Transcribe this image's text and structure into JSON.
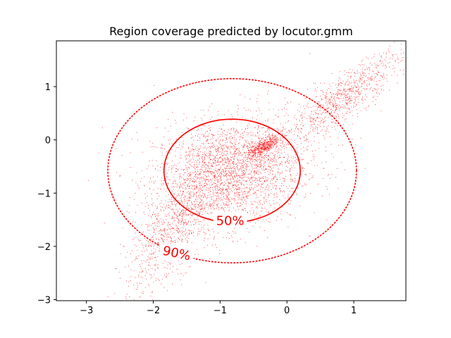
{
  "chart_data": {
    "type": "scatter",
    "title": "Region coverage predicted by locutor.gmm",
    "xlabel": "",
    "ylabel": "",
    "xlim": [
      -3.45,
      1.78
    ],
    "ylim": [
      -3.02,
      1.86
    ],
    "x_ticks": [
      -3,
      -2,
      -1,
      0,
      1
    ],
    "y_ticks": [
      -3,
      -2,
      -1,
      0,
      1
    ],
    "x_tick_labels": [
      "−3",
      "−2",
      "−1",
      "0",
      "1"
    ],
    "y_tick_labels": [
      "−3",
      "−2",
      "−1",
      "0",
      "1"
    ],
    "grid": false,
    "legend": "none",
    "point_color": "#ff0000",
    "approx_point_count": 5000,
    "point_clusters": [
      {
        "center": [
          -0.9,
          -0.65
        ],
        "sd": [
          0.55,
          0.5
        ],
        "corr": 0.1,
        "weight": 0.45
      },
      {
        "center": [
          -0.35,
          -0.12
        ],
        "sd": [
          0.12,
          0.1
        ],
        "corr": 0.7,
        "weight": 0.1
      },
      {
        "center": [
          -1.7,
          -1.7
        ],
        "sd": [
          0.35,
          0.6
        ],
        "corr": 0.7,
        "weight": 0.17
      },
      {
        "center": [
          0.9,
          0.85
        ],
        "sd": [
          0.4,
          0.4
        ],
        "corr": 0.85,
        "weight": 0.15
      },
      {
        "center": [
          -0.5,
          -0.4
        ],
        "sd": [
          0.7,
          0.6
        ],
        "corr": 0.6,
        "weight": 0.13
      }
    ],
    "contours": [
      {
        "label": "50%",
        "center": [
          -0.82,
          -0.58
        ],
        "radii": [
          1.02,
          0.97
        ],
        "style": "solid",
        "color": "#ff0000",
        "label_position": [
          -0.85,
          -1.52
        ]
      },
      {
        "label": "90%",
        "center": [
          -0.82,
          -0.58
        ],
        "radii": [
          1.86,
          1.73
        ],
        "style": "dotted",
        "color": "#ff0000",
        "label_position": [
          -1.65,
          -2.13
        ]
      }
    ]
  }
}
